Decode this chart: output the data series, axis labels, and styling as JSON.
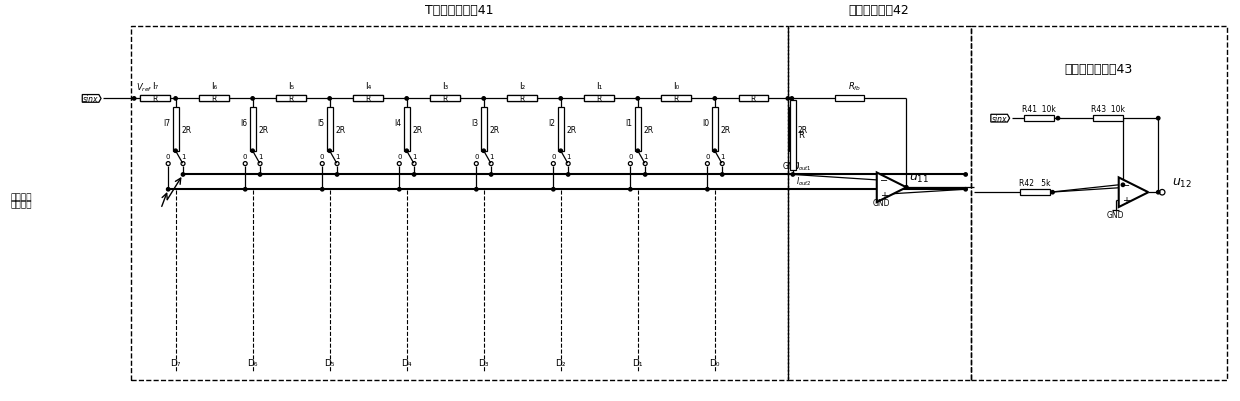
{
  "title_t": "T型电阵网络！41",
  "title_v": "电压转换器！42",
  "title_b": "双极性转换器！43",
  "sig1": "信号线一",
  "sig2": "信号线二",
  "cur_top": [
    "I₇",
    "I₆",
    "I₅",
    "I₄",
    "I₃",
    "I₂",
    "I₁",
    "I₀"
  ],
  "d_bot": [
    "D₇",
    "D₆",
    "D₅",
    "D₄",
    "D₃",
    "D₂",
    "D₁",
    "D₀"
  ],
  "vert_lbl": [
    "I7",
    "I6",
    "I5",
    "I4",
    "I3",
    "I2",
    "I1",
    "I0"
  ],
  "bg": "#ffffff"
}
